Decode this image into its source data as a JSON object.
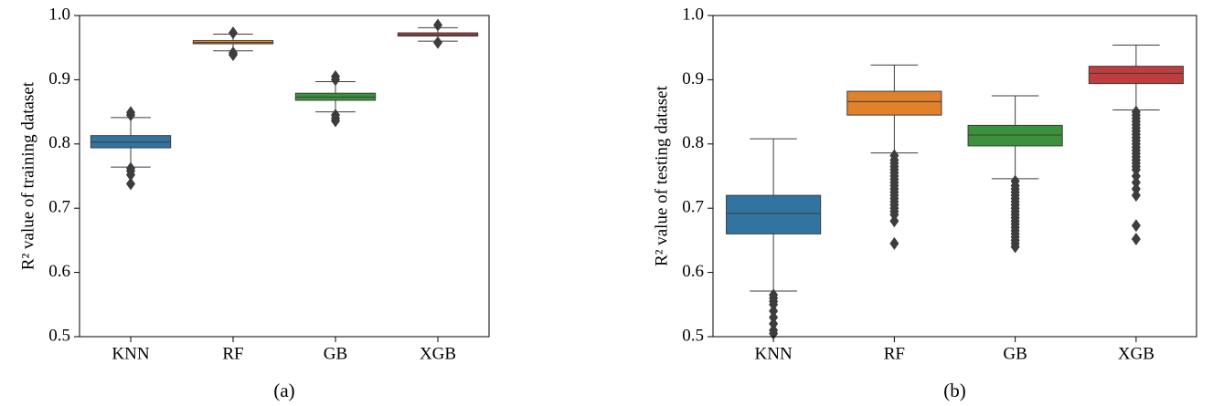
{
  "chart_data": [
    {
      "type": "box",
      "caption": "(a)",
      "ylabel": "R² value of training dataset",
      "categories": [
        "KNN",
        "RF",
        "GB",
        "XGB"
      ],
      "colors": [
        "#3274a1",
        "#e1812c",
        "#3a923a",
        "#c03d3e"
      ],
      "boxes": [
        {
          "whislo": 0.764,
          "q1": 0.794,
          "med": 0.803,
          "q3": 0.813,
          "whishi": 0.841,
          "fliers": [
            0.849,
            0.845,
            0.762,
            0.758,
            0.752,
            0.738
          ]
        },
        {
          "whislo": 0.945,
          "q1": 0.956,
          "med": 0.958,
          "q3": 0.961,
          "whishi": 0.971,
          "fliers": [
            0.973,
            0.942,
            0.939
          ]
        },
        {
          "whislo": 0.85,
          "q1": 0.868,
          "med": 0.873,
          "q3": 0.879,
          "whishi": 0.897,
          "fliers": [
            0.905,
            0.9,
            0.845,
            0.84,
            0.836
          ]
        },
        {
          "whislo": 0.96,
          "q1": 0.968,
          "med": 0.97,
          "q3": 0.973,
          "whishi": 0.981,
          "fliers": [
            0.985,
            0.958
          ]
        }
      ],
      "ylim": [
        0.5,
        1.0
      ],
      "yticks": [
        0.5,
        0.6,
        0.7,
        0.8,
        0.9,
        {
          "value": 1.0,
          "label": "1.0"
        }
      ]
    },
    {
      "type": "box",
      "caption": "(b)",
      "ylabel": "R² value of testing dataset",
      "categories": [
        "KNN",
        "RF",
        "GB",
        "XGB"
      ],
      "colors": [
        "#3274a1",
        "#e1812c",
        "#3a923a",
        "#c03d3e"
      ],
      "boxes": [
        {
          "whislo": 0.571,
          "q1": 0.66,
          "med": 0.692,
          "q3": 0.72,
          "whishi": 0.808,
          "fliers": [
            0.565,
            0.56,
            0.555,
            0.55,
            0.54,
            0.53,
            0.52,
            0.51,
            0.505
          ]
        },
        {
          "whislo": 0.786,
          "q1": 0.845,
          "med": 0.866,
          "q3": 0.882,
          "whishi": 0.923,
          "fliers": [
            0.782,
            0.775,
            0.77,
            0.765,
            0.76,
            0.755,
            0.75,
            0.745,
            0.74,
            0.735,
            0.73,
            0.725,
            0.72,
            0.715,
            0.71,
            0.705,
            0.7,
            0.695,
            0.69,
            0.68,
            0.645
          ]
        },
        {
          "whislo": 0.746,
          "q1": 0.797,
          "med": 0.814,
          "q3": 0.829,
          "whishi": 0.875,
          "fliers": [
            0.742,
            0.735,
            0.73,
            0.725,
            0.72,
            0.715,
            0.71,
            0.705,
            0.7,
            0.695,
            0.69,
            0.685,
            0.68,
            0.675,
            0.67,
            0.665,
            0.66,
            0.655,
            0.65,
            0.645,
            0.64
          ]
        },
        {
          "whislo": 0.853,
          "q1": 0.894,
          "med": 0.91,
          "q3": 0.921,
          "whishi": 0.954,
          "fliers": [
            0.85,
            0.845,
            0.84,
            0.835,
            0.83,
            0.825,
            0.82,
            0.815,
            0.81,
            0.805,
            0.8,
            0.795,
            0.79,
            0.785,
            0.78,
            0.775,
            0.77,
            0.765,
            0.76,
            0.75,
            0.74,
            0.73,
            0.72,
            0.673,
            0.652
          ]
        }
      ],
      "ylim": [
        0.5,
        1.0
      ],
      "yticks": [
        0.5,
        0.6,
        0.7,
        0.8,
        0.9,
        {
          "value": 1.0,
          "label": "1.0"
        }
      ]
    }
  ]
}
